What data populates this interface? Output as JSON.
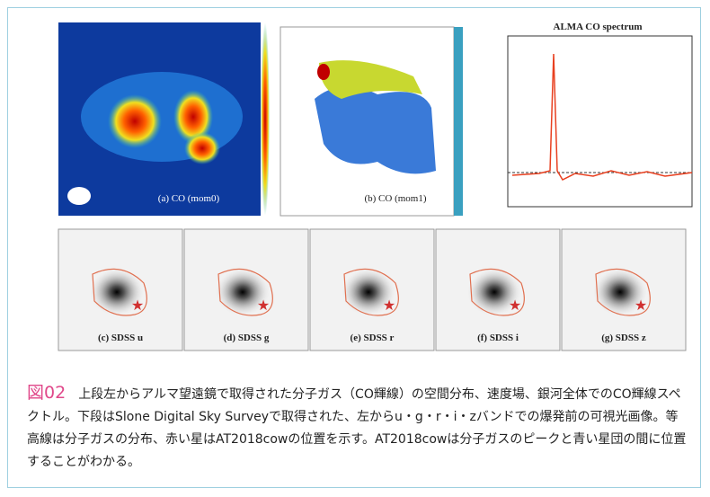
{
  "figure": {
    "top_panels": [
      "(a) CO (mom0)",
      "(b) CO (mom1)"
    ],
    "spectrum_title": "ALMA CO spectrum",
    "bottom_panels": [
      "(c) SDSS u",
      "(d) SDSS g",
      "(e) SDSS r",
      "(f) SDSS i",
      "(g) SDSS z"
    ]
  },
  "caption": {
    "label": "図02",
    "text": "上段左からアルマ望遠鏡で取得された分子ガス（CO輝線）の空間分布、速度場、銀河全体でのCO輝線スペクトル。下段はSlone Digital Sky Surveyで取得された、左からu・g・r・i・zバンドでの爆発前の可視光画像。等高線は分子ガスの分布、赤い星はAT2018cowの位置を示す。AT2018cowは分子ガスのピークと青い星団の間に位置することがわかる。"
  }
}
